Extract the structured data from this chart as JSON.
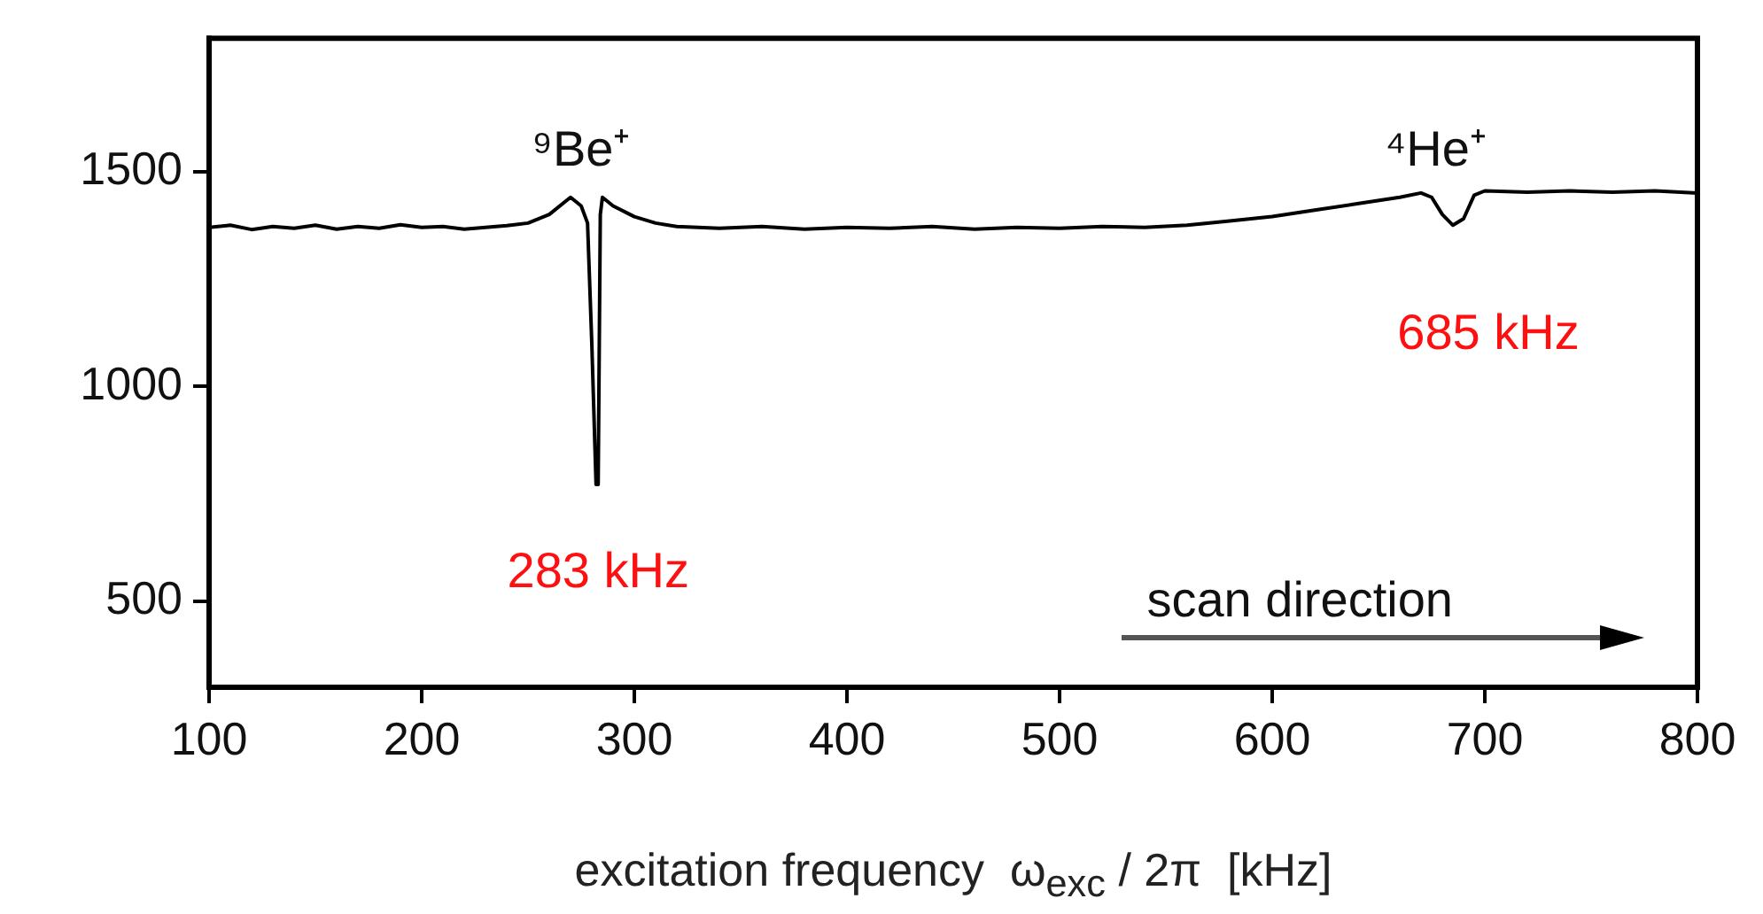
{
  "chart_data": {
    "type": "line",
    "xlabel": "excitation frequency  ω$_{exc}$ / 2π  [kHz]",
    "x": [
      100,
      110,
      120,
      130,
      140,
      150,
      160,
      170,
      180,
      190,
      200,
      210,
      220,
      230,
      240,
      250,
      260,
      270,
      275,
      278,
      280,
      282,
      283,
      284,
      285,
      290,
      300,
      310,
      320,
      340,
      360,
      380,
      400,
      420,
      440,
      460,
      480,
      500,
      520,
      540,
      560,
      580,
      600,
      620,
      640,
      660,
      670,
      675,
      680,
      685,
      690,
      695,
      700,
      720,
      740,
      760,
      780,
      800
    ],
    "series": [
      {
        "color": "#000000",
        "values": [
          1370,
          1375,
          1365,
          1372,
          1368,
          1375,
          1366,
          1372,
          1368,
          1376,
          1370,
          1372,
          1366,
          1370,
          1374,
          1380,
          1400,
          1440,
          1420,
          1380,
          1100,
          772,
          772,
          1400,
          1440,
          1420,
          1395,
          1380,
          1372,
          1368,
          1372,
          1366,
          1370,
          1368,
          1372,
          1366,
          1370,
          1368,
          1372,
          1370,
          1375,
          1385,
          1395,
          1410,
          1425,
          1440,
          1450,
          1440,
          1400,
          1375,
          1390,
          1445,
          1455,
          1452,
          1455,
          1452,
          1455,
          1450
        ]
      }
    ],
    "xlim": [
      100,
      800
    ],
    "xticks": [
      100,
      200,
      300,
      400,
      500,
      600,
      700,
      800
    ],
    "ylim": [
      300,
      1810
    ],
    "yticks": [
      500,
      1000,
      1500
    ],
    "grid": false,
    "legend": false,
    "marker": "none",
    "line_style": "solid",
    "annotations": [
      "⁹Be⁺",
      {
        "text": "283 kHz",
        "x": 283,
        "y": 772
      },
      "⁴He⁺",
      {
        "text": "685 kHz",
        "x": 685,
        "y": 1375
      },
      "scan direction"
    ]
  }
}
